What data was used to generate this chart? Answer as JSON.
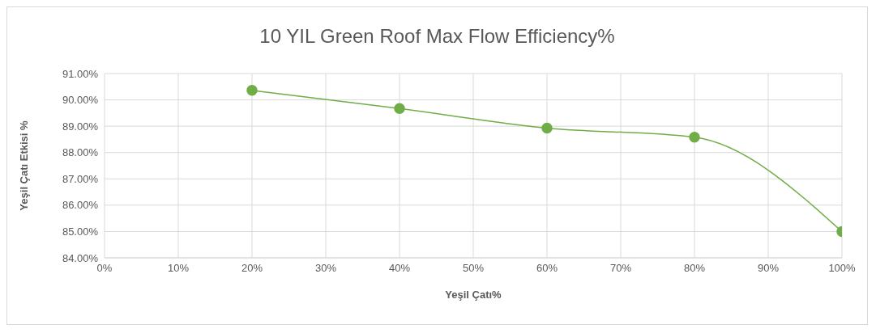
{
  "chart_data": {
    "type": "line",
    "title": "10 YIL Green Roof Max Flow Efficiency%",
    "xlabel": "Yeşil Çatı%",
    "ylabel": "Yeşil Çatı Etkisi %",
    "x": [
      20,
      40,
      60,
      80,
      100
    ],
    "series": [
      {
        "color": "#70ad47",
        "values": [
          90.36,
          89.67,
          88.93,
          88.58,
          85.0
        ]
      }
    ],
    "xlim": [
      0,
      100
    ],
    "xticks": [
      {
        "value": 0,
        "label": "0%"
      },
      {
        "value": 10,
        "label": "10%"
      },
      {
        "value": 20,
        "label": "20%"
      },
      {
        "value": 30,
        "label": "30%"
      },
      {
        "value": 40,
        "label": "40%"
      },
      {
        "value": 50,
        "label": "50%"
      },
      {
        "value": 60,
        "label": "60%"
      },
      {
        "value": 70,
        "label": "70%"
      },
      {
        "value": 80,
        "label": "80%"
      },
      {
        "value": 90,
        "label": "90%"
      },
      {
        "value": 100,
        "label": "100%"
      }
    ],
    "ylim": [
      84,
      91
    ],
    "yticks": [
      {
        "value": 84,
        "label": "84.00%"
      },
      {
        "value": 85,
        "label": "85.00%"
      },
      {
        "value": 86,
        "label": "86.00%"
      },
      {
        "value": 87,
        "label": "87.00%"
      },
      {
        "value": 88,
        "label": "88.00%"
      },
      {
        "value": 89,
        "label": "89.00%"
      },
      {
        "value": 90,
        "label": "90.00%"
      },
      {
        "value": 91,
        "label": "91.00%"
      }
    ],
    "grid": true,
    "marker": "circle",
    "line_style": "solid",
    "legend": false
  }
}
